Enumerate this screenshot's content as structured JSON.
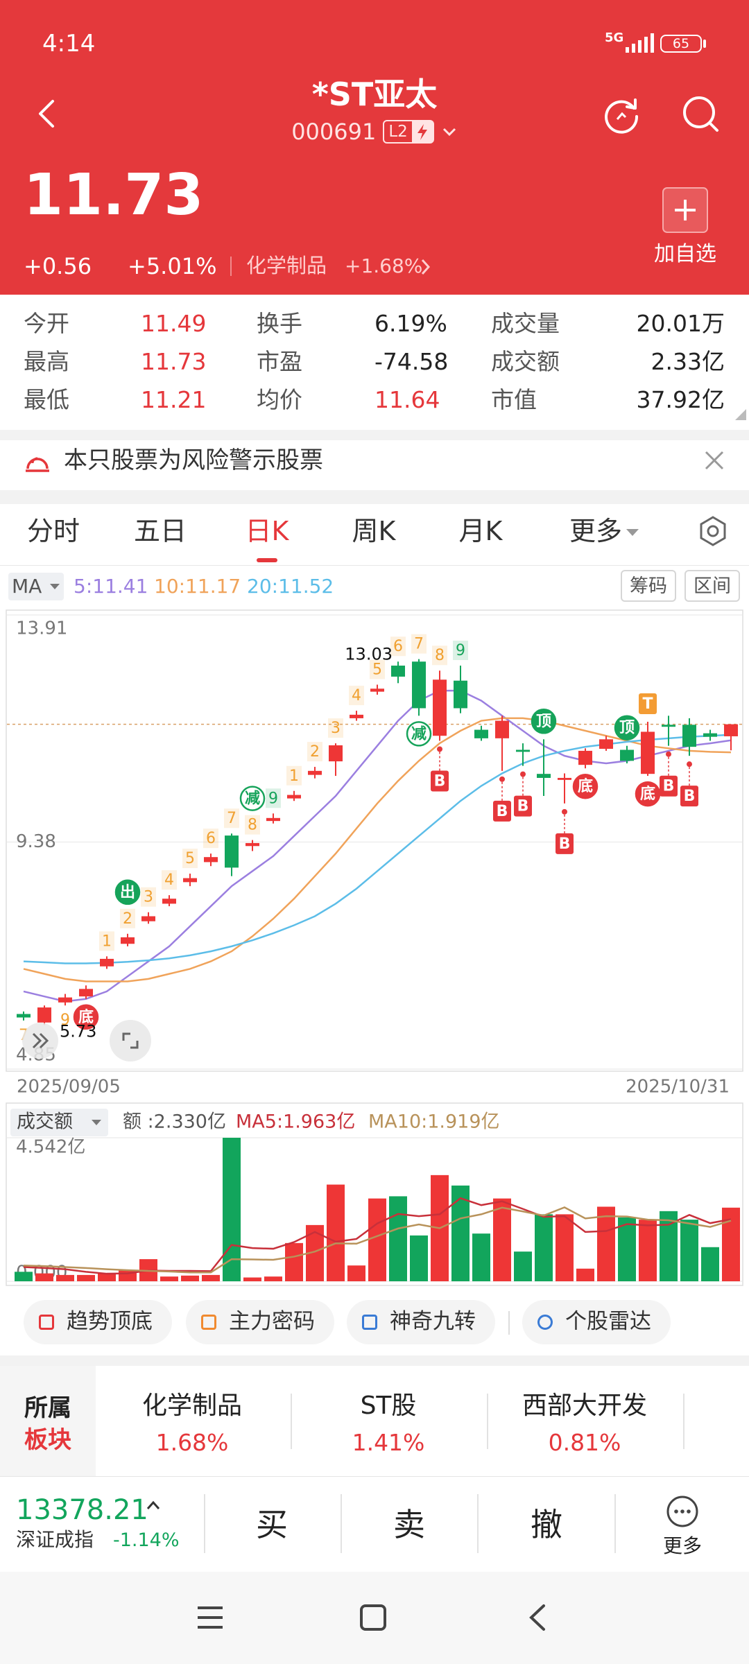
{
  "status_bar": {
    "time": "4:14",
    "network": "5G",
    "battery": "65"
  },
  "header": {
    "title": "*ST亚太",
    "code": "000691",
    "badge": "L2"
  },
  "quote": {
    "price": "11.73",
    "change": "+0.56",
    "change_pct": "+5.01%",
    "sector": "化学制品",
    "sector_pct": "+1.68%",
    "add_label": "加自选"
  },
  "stats": [
    [
      {
        "label": "今开",
        "value": "11.49",
        "color": "#e5373b"
      },
      {
        "label": "换手",
        "value": "6.19%",
        "color": "#222222"
      },
      {
        "label": "成交量",
        "value": "20.01万",
        "color": "#222222"
      }
    ],
    [
      {
        "label": "最高",
        "value": "11.73",
        "color": "#e5373b"
      },
      {
        "label": "市盈",
        "value": "-74.58",
        "color": "#222222"
      },
      {
        "label": "成交额",
        "value": "2.33亿",
        "color": "#222222"
      }
    ],
    [
      {
        "label": "最低",
        "value": "11.21",
        "color": "#e5373b"
      },
      {
        "label": "均价",
        "value": "11.64",
        "color": "#e5373b"
      },
      {
        "label": "市值",
        "value": "37.92亿",
        "color": "#222222"
      }
    ]
  ],
  "warning": "本只股票为风险警示股票",
  "tabs": {
    "items": [
      "分时",
      "五日",
      "日K",
      "周K",
      "月K",
      "更多"
    ],
    "active": 2
  },
  "kline": {
    "type": "candlestick",
    "indicator": "MA",
    "buttons": [
      "筹码",
      "区间"
    ],
    "ylim": [
      4.85,
      13.91
    ],
    "yticks": [
      4.85,
      9.38,
      13.91
    ],
    "x_labels": [
      "2025/09/05",
      "2025/10/31"
    ],
    "up_color": "#ee3636",
    "down_color": "#12a55c",
    "td_color": "#f0a030",
    "ma_lines": [
      {
        "label": "5:11.41",
        "color": "#9b7fe0",
        "values": [
          6.4,
          6.3,
          6.2,
          6.25,
          6.4,
          6.7,
          7.0,
          7.3,
          7.7,
          8.1,
          8.5,
          8.8,
          9.1,
          9.5,
          9.9,
          10.3,
          10.8,
          11.3,
          11.8,
          12.2,
          12.4,
          12.4,
          12.2,
          11.9,
          11.6,
          11.3,
          11.1,
          11.0,
          10.95,
          11.0,
          11.1,
          11.2,
          11.3,
          11.35,
          11.41
        ]
      },
      {
        "label": "10:11.17",
        "color": "#f0a35a",
        "values": [
          6.85,
          6.75,
          6.65,
          6.6,
          6.6,
          6.6,
          6.65,
          6.75,
          6.85,
          7.0,
          7.2,
          7.5,
          7.85,
          8.25,
          8.7,
          9.15,
          9.65,
          10.15,
          10.6,
          11.0,
          11.35,
          11.6,
          11.8,
          11.85,
          11.85,
          11.8,
          11.7,
          11.6,
          11.5,
          11.4,
          11.3,
          11.25,
          11.2,
          11.18,
          11.17
        ]
      },
      {
        "label": "20:11.52",
        "color": "#5cbde8",
        "values": [
          7.0,
          6.98,
          6.96,
          6.96,
          6.97,
          6.99,
          7.02,
          7.06,
          7.12,
          7.2,
          7.3,
          7.42,
          7.56,
          7.72,
          7.9,
          8.15,
          8.45,
          8.8,
          9.15,
          9.5,
          9.85,
          10.2,
          10.5,
          10.75,
          10.95,
          11.1,
          11.2,
          11.28,
          11.33,
          11.38,
          11.42,
          11.45,
          11.48,
          11.5,
          11.52
        ]
      }
    ],
    "candles": [
      {
        "open": 5.95,
        "close": 5.88,
        "high": 6.0,
        "low": 5.82,
        "td_low": 7
      },
      {
        "open": 5.78,
        "close": 6.08,
        "high": 6.12,
        "low": 5.73
      },
      {
        "open": 6.18,
        "close": 6.28,
        "high": 6.35,
        "low": 6.12,
        "td_low": 9
      },
      {
        "open": 6.3,
        "close": 6.45,
        "high": 6.52,
        "low": 6.25,
        "tags": [
          {
            "text": "底",
            "pos": "below",
            "style": "circle-red"
          }
        ]
      },
      {
        "open": 6.9,
        "close": 7.05,
        "high": 7.1,
        "low": 6.85,
        "td": 1
      },
      {
        "open": 7.35,
        "close": 7.48,
        "high": 7.55,
        "low": 7.3,
        "td": 2,
        "tags": [
          {
            "text": "出",
            "pos": "above",
            "style": "circle-green"
          }
        ]
      },
      {
        "open": 7.8,
        "close": 7.9,
        "high": 7.98,
        "low": 7.75,
        "td": 3
      },
      {
        "open": 8.15,
        "close": 8.25,
        "high": 8.32,
        "low": 8.1,
        "td": 4
      },
      {
        "open": 8.58,
        "close": 8.66,
        "high": 8.75,
        "low": 8.5,
        "td": 5
      },
      {
        "open": 8.98,
        "close": 9.08,
        "high": 9.15,
        "low": 8.9,
        "td": 6
      },
      {
        "open": 9.51,
        "close": 8.87,
        "high": 9.55,
        "low": 8.7,
        "td": 7
      },
      {
        "open": 9.3,
        "close": 9.36,
        "high": 9.42,
        "low": 9.2,
        "td": 8,
        "tags": [
          {
            "text": "减",
            "pos": "above",
            "style": "outline-green"
          }
        ]
      },
      {
        "open": 9.8,
        "close": 9.86,
        "high": 9.95,
        "low": 9.75,
        "td": 9,
        "td_color": "#16a35a"
      },
      {
        "open": 10.25,
        "close": 10.32,
        "high": 10.4,
        "low": 10.2,
        "td": 1
      },
      {
        "open": 10.72,
        "close": 10.8,
        "high": 10.88,
        "low": 10.65,
        "td": 2
      },
      {
        "open": 10.99,
        "close": 11.31,
        "high": 11.35,
        "low": 10.7,
        "td": 3
      },
      {
        "open": 11.85,
        "close": 11.92,
        "high": 12.0,
        "low": 11.8,
        "td": 4
      },
      {
        "open": 12.38,
        "close": 12.44,
        "high": 12.52,
        "low": 12.32,
        "td": 5
      },
      {
        "open": 12.9,
        "close": 12.68,
        "high": 12.98,
        "low": 12.55,
        "td": 6
      },
      {
        "open": 12.98,
        "close": 12.05,
        "high": 13.03,
        "low": 11.9,
        "td": 7,
        "tags": [
          {
            "text": "减",
            "pos": "below",
            "style": "outline-green"
          }
        ]
      },
      {
        "open": 11.5,
        "close": 12.62,
        "high": 12.8,
        "low": 11.4,
        "td": 8,
        "tags": [
          {
            "text": "B",
            "pos": "below",
            "style": "box-red"
          }
        ]
      },
      {
        "open": 12.6,
        "close": 12.05,
        "high": 12.9,
        "low": 11.95,
        "td": 9,
        "td_color": "#16a35a"
      },
      {
        "open": 11.62,
        "close": 11.45,
        "high": 11.7,
        "low": 11.4
      },
      {
        "open": 11.45,
        "close": 11.8,
        "high": 11.9,
        "low": 10.8,
        "tags": [
          {
            "text": "B",
            "pos": "below",
            "style": "box-red"
          }
        ]
      },
      {
        "open": 11.22,
        "close": 11.18,
        "high": 11.35,
        "low": 10.9,
        "tags": [
          {
            "text": "B",
            "pos": "below",
            "style": "box-red"
          }
        ]
      },
      {
        "open": 10.74,
        "close": 10.66,
        "high": 11.43,
        "low": 10.3,
        "tags": [
          {
            "text": "顶",
            "pos": "above",
            "style": "circle-green"
          }
        ]
      },
      {
        "open": 10.62,
        "close": 10.66,
        "high": 10.75,
        "low": 10.15,
        "tags": [
          {
            "text": "B",
            "pos": "below",
            "style": "box-red"
          }
        ]
      },
      {
        "open": 10.92,
        "close": 11.2,
        "high": 11.25,
        "low": 10.85,
        "tags": [
          {
            "text": "底",
            "pos": "below",
            "style": "circle-red"
          }
        ]
      },
      {
        "open": 11.24,
        "close": 11.43,
        "high": 11.5,
        "low": 11.2
      },
      {
        "open": 11.22,
        "close": 11.0,
        "high": 11.3,
        "low": 10.95,
        "tags": [
          {
            "text": "顶",
            "pos": "above",
            "style": "circle-green"
          }
        ]
      },
      {
        "open": 10.74,
        "close": 11.58,
        "high": 11.78,
        "low": 10.7,
        "tags": [
          {
            "text": "T",
            "pos": "above",
            "style": "box-orange"
          },
          {
            "text": "底",
            "pos": "below",
            "style": "circle-red"
          }
        ]
      },
      {
        "open": 11.72,
        "close": 11.68,
        "high": 11.9,
        "low": 11.3,
        "tags": [
          {
            "text": "B",
            "pos": "below",
            "style": "box-red"
          }
        ]
      },
      {
        "open": 11.72,
        "close": 11.28,
        "high": 11.85,
        "low": 11.1,
        "tags": [
          {
            "text": "B",
            "pos": "below",
            "style": "box-red"
          }
        ]
      },
      {
        "open": 11.55,
        "close": 11.48,
        "high": 11.62,
        "low": 11.4
      },
      {
        "open": 11.49,
        "close": 11.73,
        "high": 11.73,
        "low": 11.21
      }
    ]
  },
  "volume": {
    "type": "bar",
    "title": "成交额",
    "current": "额 :2.330亿",
    "ylim": [
      0,
      4.542
    ],
    "yticks": [
      {
        "value": 0,
        "label": "0.000"
      },
      {
        "value": 4.542,
        "label": "4.542亿"
      }
    ],
    "values": [
      0.3,
      0.25,
      0.2,
      0.2,
      0.25,
      0.35,
      0.7,
      0.15,
      0.18,
      0.2,
      4.542,
      0.12,
      0.15,
      1.21,
      1.78,
      3.06,
      0.5,
      2.62,
      2.69,
      1.45,
      3.36,
      3.03,
      1.51,
      2.62,
      0.94,
      2.12,
      2.12,
      0.4,
      2.36,
      2.02,
      1.95,
      2.22,
      1.95,
      1.08,
      2.33
    ],
    "ma_lines": [
      {
        "label": "MA5:1.963亿",
        "color": "#c8303a",
        "values": [
          0.45,
          0.42,
          0.38,
          0.3,
          0.24,
          0.25,
          0.34,
          0.33,
          0.33,
          0.32,
          1.15,
          1.05,
          1.03,
          1.24,
          1.56,
          1.25,
          1.34,
          1.83,
          2.13,
          2.06,
          2.12,
          2.63,
          2.41,
          2.53,
          2.29,
          2.04,
          2.06,
          1.56,
          1.59,
          1.81,
          1.77,
          1.79,
          2.1,
          1.84,
          1.963
        ]
      },
      {
        "label": "MA10:1.919亿",
        "color": "#b8925a",
        "values": [
          0.5,
          0.48,
          0.45,
          0.42,
          0.38,
          0.35,
          0.33,
          0.31,
          0.28,
          0.28,
          0.7,
          0.69,
          0.68,
          0.78,
          0.94,
          1.2,
          1.19,
          1.43,
          1.67,
          1.8,
          1.68,
          1.99,
          2.12,
          2.33,
          2.21,
          2.08,
          2.34,
          1.99,
          2.06,
          2.05,
          1.95,
          1.93,
          1.83,
          1.72,
          1.919
        ]
      }
    ]
  },
  "tools": [
    "趋势顶底",
    "主力密码",
    "神奇九转",
    "个股雷达"
  ],
  "sectors": {
    "label": [
      "所属",
      "板块"
    ],
    "items": [
      {
        "name": "化学制品",
        "pct": "1.68%"
      },
      {
        "name": "ST股",
        "pct": "1.41%"
      },
      {
        "name": "西部大开发",
        "pct": "0.81%"
      }
    ]
  },
  "index": {
    "value": "13378.21",
    "name": "深证成指",
    "change": "-1.14%"
  },
  "actions": [
    "买",
    "卖",
    "撤",
    "更多"
  ]
}
